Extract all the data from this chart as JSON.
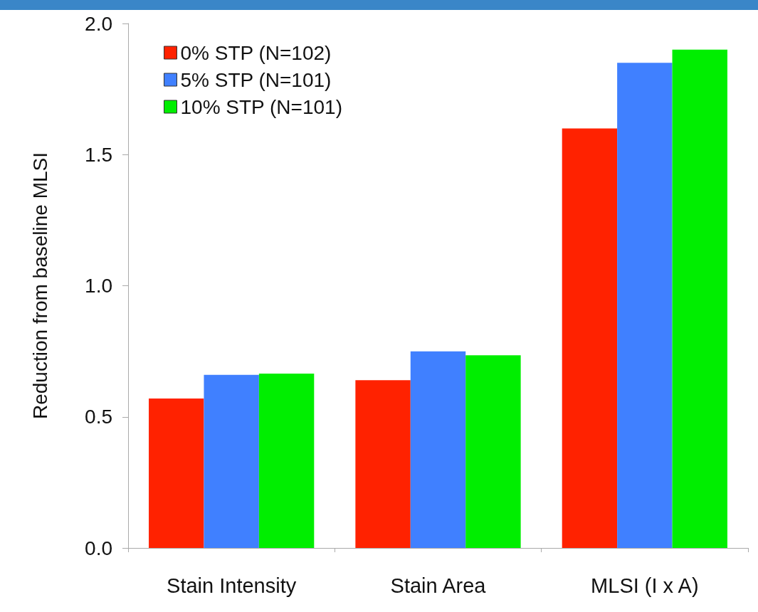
{
  "chart_data": {
    "type": "bar",
    "ylabel": "Reduction from baseline MLSI",
    "categories": [
      "Stain Intensity",
      "Stain Area",
      "MLSI (I x A)"
    ],
    "series": [
      {
        "name": "0% STP (N=102)",
        "color": "#ff2200",
        "values": [
          0.57,
          0.64,
          1.6
        ]
      },
      {
        "name": "5% STP (N=101)",
        "color": "#4080ff",
        "values": [
          0.66,
          0.75,
          1.85
        ]
      },
      {
        "name": "10% STP (N=101)",
        "color": "#00ee00",
        "values": [
          0.665,
          0.735,
          1.9
        ]
      }
    ],
    "ylim": [
      0,
      2
    ],
    "yticks": [
      {
        "value": 0,
        "label": "0.0"
      },
      0.5,
      {
        "value": 1,
        "label": "1.0"
      },
      1.5,
      {
        "value": 2,
        "label": "2.0"
      }
    ],
    "grid": false,
    "legend": "top left"
  }
}
